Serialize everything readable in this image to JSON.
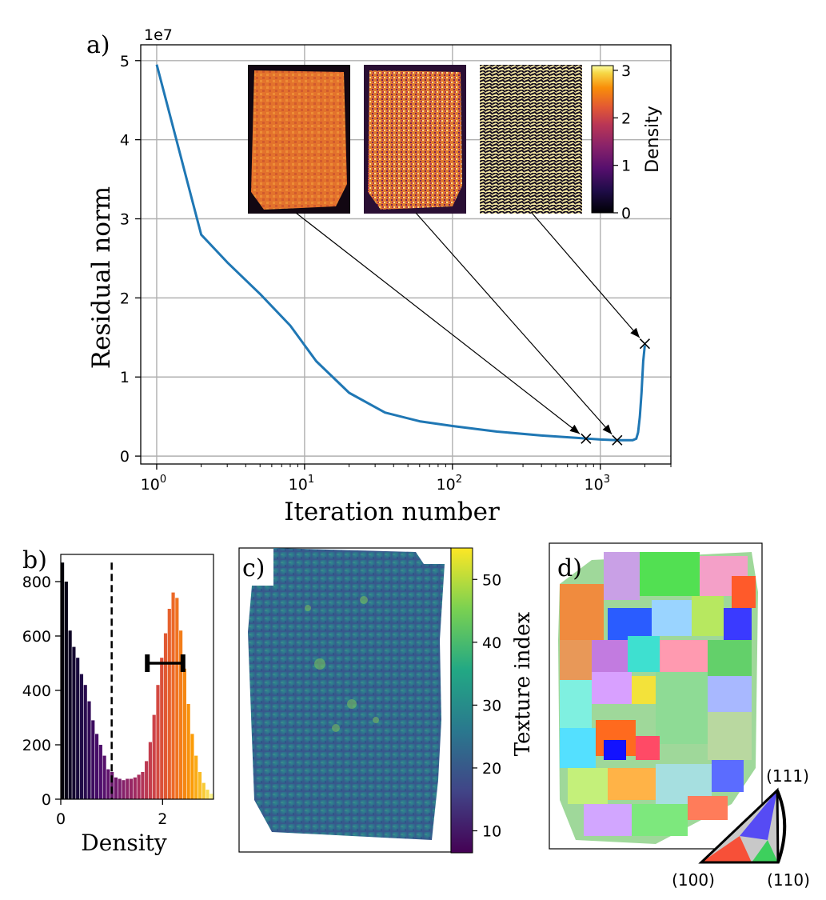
{
  "chart_data": [
    {
      "panel_label": "a)",
      "type": "line",
      "xscale": "log",
      "xlabel": "Iteration number",
      "ylabel": "Residual norm",
      "y_multiplier_label": "1e7",
      "xlim": [
        0.78,
        3000
      ],
      "ylim": [
        -0.1,
        5.2
      ],
      "x_ticks": [
        1,
        10,
        100,
        1000
      ],
      "x_tick_labels": [
        "10",
        "10",
        "10",
        "10"
      ],
      "x_tick_exponents": [
        "0",
        "1",
        "2",
        "3"
      ],
      "y_ticks": [
        0,
        1,
        2,
        3,
        4,
        5
      ],
      "y_tick_labels": [
        "0",
        "1",
        "2",
        "3",
        "4",
        "5"
      ],
      "grid": true,
      "series": [
        {
          "name": "Residual norm",
          "color": "#1f77b4",
          "x": [
            1,
            2,
            3,
            5,
            8,
            12,
            20,
            35,
            60,
            100,
            200,
            400,
            700,
            1000,
            1300,
            1500,
            1650,
            1750,
            1800,
            1850,
            1900,
            1950,
            2000
          ],
          "y": [
            4.95,
            2.8,
            2.45,
            2.05,
            1.65,
            1.2,
            0.8,
            0.55,
            0.44,
            0.38,
            0.31,
            0.26,
            0.23,
            0.21,
            0.2,
            0.2,
            0.2,
            0.22,
            0.3,
            0.5,
            0.8,
            1.2,
            1.4
          ]
        }
      ],
      "markers": [
        {
          "x": 800,
          "y": 0.22
        },
        {
          "x": 1300,
          "y": 0.2
        },
        {
          "x": 2000,
          "y": 1.42
        }
      ],
      "inset_colorbar": {
        "label": "Density",
        "ticks": [
          "0",
          "1",
          "2",
          "3"
        ],
        "range": [
          0,
          3.1
        ],
        "colormap": "inferno"
      }
    },
    {
      "panel_label": "b)",
      "type": "bar",
      "xlabel": "Density",
      "xlim": [
        0,
        3
      ],
      "ylim": [
        0,
        900
      ],
      "x_ticks": [
        0,
        2
      ],
      "x_tick_labels": [
        "0",
        "2"
      ],
      "y_ticks": [
        0,
        200,
        400,
        600,
        800
      ],
      "y_tick_labels": [
        "0",
        "200",
        "400",
        "600",
        "800"
      ],
      "bin_width": 0.075,
      "values": [
        870,
        800,
        620,
        560,
        520,
        460,
        420,
        360,
        290,
        240,
        200,
        160,
        110,
        100,
        80,
        75,
        70,
        75,
        75,
        80,
        90,
        100,
        140,
        210,
        310,
        420,
        520,
        610,
        700,
        760,
        740,
        620,
        480,
        350,
        240,
        160,
        100,
        60,
        35,
        20
      ],
      "threshold_line": 1.0,
      "error_bar": {
        "center": 2.05,
        "low": 1.7,
        "high": 2.4,
        "y": 500
      }
    },
    {
      "panel_label": "c)",
      "type": "heatmap",
      "colorbar_label": "Texture index",
      "colorbar_ticks": [
        "10",
        "20",
        "30",
        "40",
        "50"
      ],
      "range": [
        6.5,
        55
      ],
      "colormap": "viridis"
    },
    {
      "panel_label": "d)",
      "type": "heatmap",
      "legend": "inverse pole figure key",
      "corner_labels": [
        "(111)",
        "(100)",
        "(110)"
      ]
    }
  ]
}
